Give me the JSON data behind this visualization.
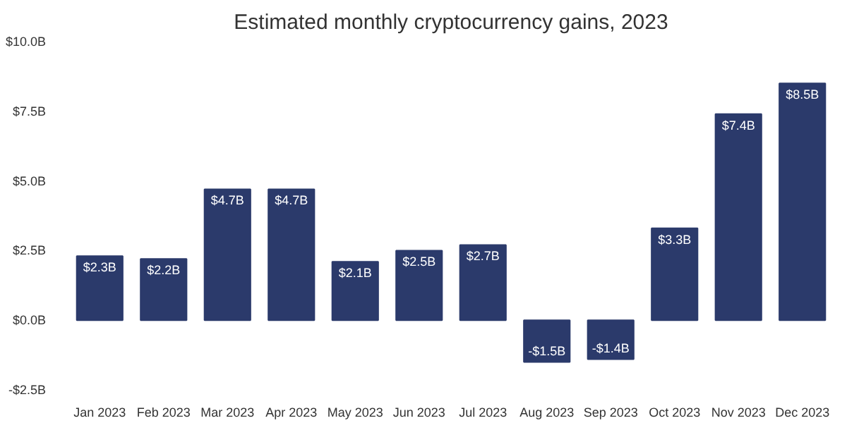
{
  "chart_data": {
    "type": "bar",
    "title": "Estimated monthly cryptocurrency gains, 2023",
    "categories": [
      "Jan 2023",
      "Feb 2023",
      "Mar 2023",
      "Apr 2023",
      "May 2023",
      "Jun 2023",
      "Jul 2023",
      "Aug 2023",
      "Sep 2023",
      "Oct 2023",
      "Nov 2023",
      "Dec 2023"
    ],
    "values": [
      2.3,
      2.2,
      4.7,
      4.7,
      2.1,
      2.5,
      2.7,
      -1.5,
      -1.4,
      3.3,
      7.4,
      8.5
    ],
    "value_labels": [
      "$2.3B",
      "$2.2B",
      "$4.7B",
      "$4.7B",
      "$2.1B",
      "$2.5B",
      "$2.7B",
      "-$1.5B",
      "-$1.4B",
      "$3.3B",
      "$7.4B",
      "$8.5B"
    ],
    "color": "#2b3a6b",
    "ylim": [
      -2.5,
      10
    ],
    "yticks": [
      {
        "value": -2.5,
        "label": "-$2.5B"
      },
      {
        "value": 0,
        "label": "$0.0B"
      },
      {
        "value": 2.5,
        "label": "$2.5B"
      },
      {
        "value": 5,
        "label": "$5.0B"
      },
      {
        "value": 7.5,
        "label": "$7.5B"
      },
      {
        "value": 10,
        "label": "$10.0B"
      }
    ],
    "grid": false
  }
}
